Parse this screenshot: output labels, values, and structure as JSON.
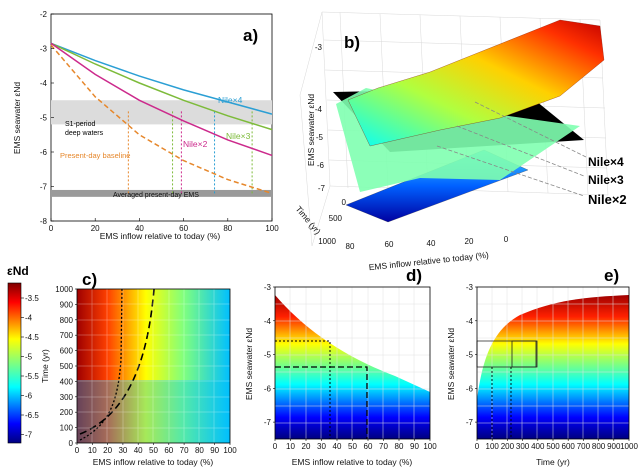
{
  "chart_data": [
    {
      "panel": "a)",
      "type": "line",
      "xlabel": "EMS inflow relative to today (%)",
      "ylabel": "EMS seawater εNd",
      "xlim": [
        0,
        100
      ],
      "ylim": [
        -8,
        -2
      ],
      "xticks": [
        0,
        20,
        40,
        60,
        80,
        100
      ],
      "yticks": [
        -8,
        -7,
        -6,
        -5,
        -4,
        -3,
        -2
      ],
      "series": [
        {
          "name": "Nile×4",
          "color": "#2b9fd4",
          "x": [
            0,
            20,
            40,
            60,
            80,
            100
          ],
          "y": [
            -2.85,
            -3.35,
            -3.8,
            -4.2,
            -4.55,
            -4.9
          ]
        },
        {
          "name": "Nile×3",
          "color": "#7dbb3a",
          "x": [
            0,
            20,
            40,
            60,
            80,
            100
          ],
          "y": [
            -2.85,
            -3.45,
            -4.0,
            -4.5,
            -4.95,
            -5.35
          ]
        },
        {
          "name": "Nile×2",
          "color": "#cc2a8c",
          "x": [
            0,
            20,
            40,
            60,
            80,
            100
          ],
          "y": [
            -2.85,
            -3.75,
            -4.5,
            -5.1,
            -5.65,
            -6.1
          ]
        },
        {
          "name": "Present-day baseline",
          "color": "#e6872b",
          "dashed": true,
          "x": [
            0,
            20,
            40,
            60,
            80,
            100
          ],
          "y": [
            -2.9,
            -4.4,
            -5.5,
            -6.25,
            -6.8,
            -7.2
          ]
        }
      ],
      "bands": [
        {
          "label": "S1-period\ndeep waters",
          "ymin": -5.2,
          "ymax": -4.5,
          "color": "#dcdcdc"
        },
        {
          "label": "Averaged present-day EMS",
          "ymin": -7.3,
          "ymax": -7.1,
          "color": "#9a9a9a"
        }
      ],
      "dotted_x": [
        {
          "x": 35,
          "color": "#e6872b"
        },
        {
          "x": 55,
          "color": "#7dbb3a"
        },
        {
          "x": 59,
          "color": "#cc2a8c"
        },
        {
          "x": 74,
          "color": "#2b9fd4"
        },
        {
          "x": 91,
          "color": "#7dbb3a"
        }
      ]
    },
    {
      "panel": "b)",
      "type": "surface3d",
      "xlabel": "EMS inflow relative to today (%)",
      "ylabel": "Time (yr)",
      "zlabel": "EMS seawater εNd",
      "xticks": [
        80,
        60,
        40,
        20,
        0
      ],
      "yticks": [
        0,
        500,
        1000
      ],
      "zticks": [
        -7,
        -6,
        -5,
        -4,
        -3
      ],
      "labels": [
        "Nile×4",
        "Nile×3",
        "Nile×2"
      ]
    },
    {
      "panel": "c)",
      "type": "heatmap",
      "xlabel": "EMS inflow relative to today (%)",
      "ylabel": "Time (yr)",
      "xlim": [
        0,
        100
      ],
      "ylim": [
        0,
        1000
      ],
      "xticks": [
        0,
        10,
        20,
        30,
        40,
        50,
        60,
        70,
        80,
        90,
        100
      ],
      "yticks": [
        0,
        100,
        200,
        300,
        400,
        500,
        600,
        700,
        800,
        900,
        1000
      ],
      "colorbar_label": "εNd",
      "colorbar_ticks": [
        "-3.5",
        "-4",
        "-4.5",
        "-5",
        "-5.5",
        "-6",
        "-6.5",
        "-7"
      ]
    },
    {
      "panel": "d)",
      "type": "heatmap",
      "xlabel": "EMS inflow relative to today (%)",
      "ylabel": "EMS seawater εNd",
      "xlim": [
        0,
        100
      ],
      "ylim": [
        -7.5,
        -3
      ],
      "xticks": [
        0,
        10,
        20,
        30,
        40,
        50,
        60,
        70,
        80,
        90,
        100
      ],
      "yticks": [
        -7,
        -6,
        -5,
        -4,
        -3
      ]
    },
    {
      "panel": "e)",
      "type": "heatmap",
      "xlabel": "Time (yr)",
      "ylabel": "EMS seawater εNd",
      "xlim": [
        0,
        1000
      ],
      "ylim": [
        -7.5,
        -3
      ],
      "xticks": [
        0,
        100,
        200,
        300,
        400,
        500,
        600,
        700,
        800,
        900,
        1000
      ],
      "yticks": [
        -7,
        -6,
        -5,
        -4,
        -3
      ]
    }
  ]
}
